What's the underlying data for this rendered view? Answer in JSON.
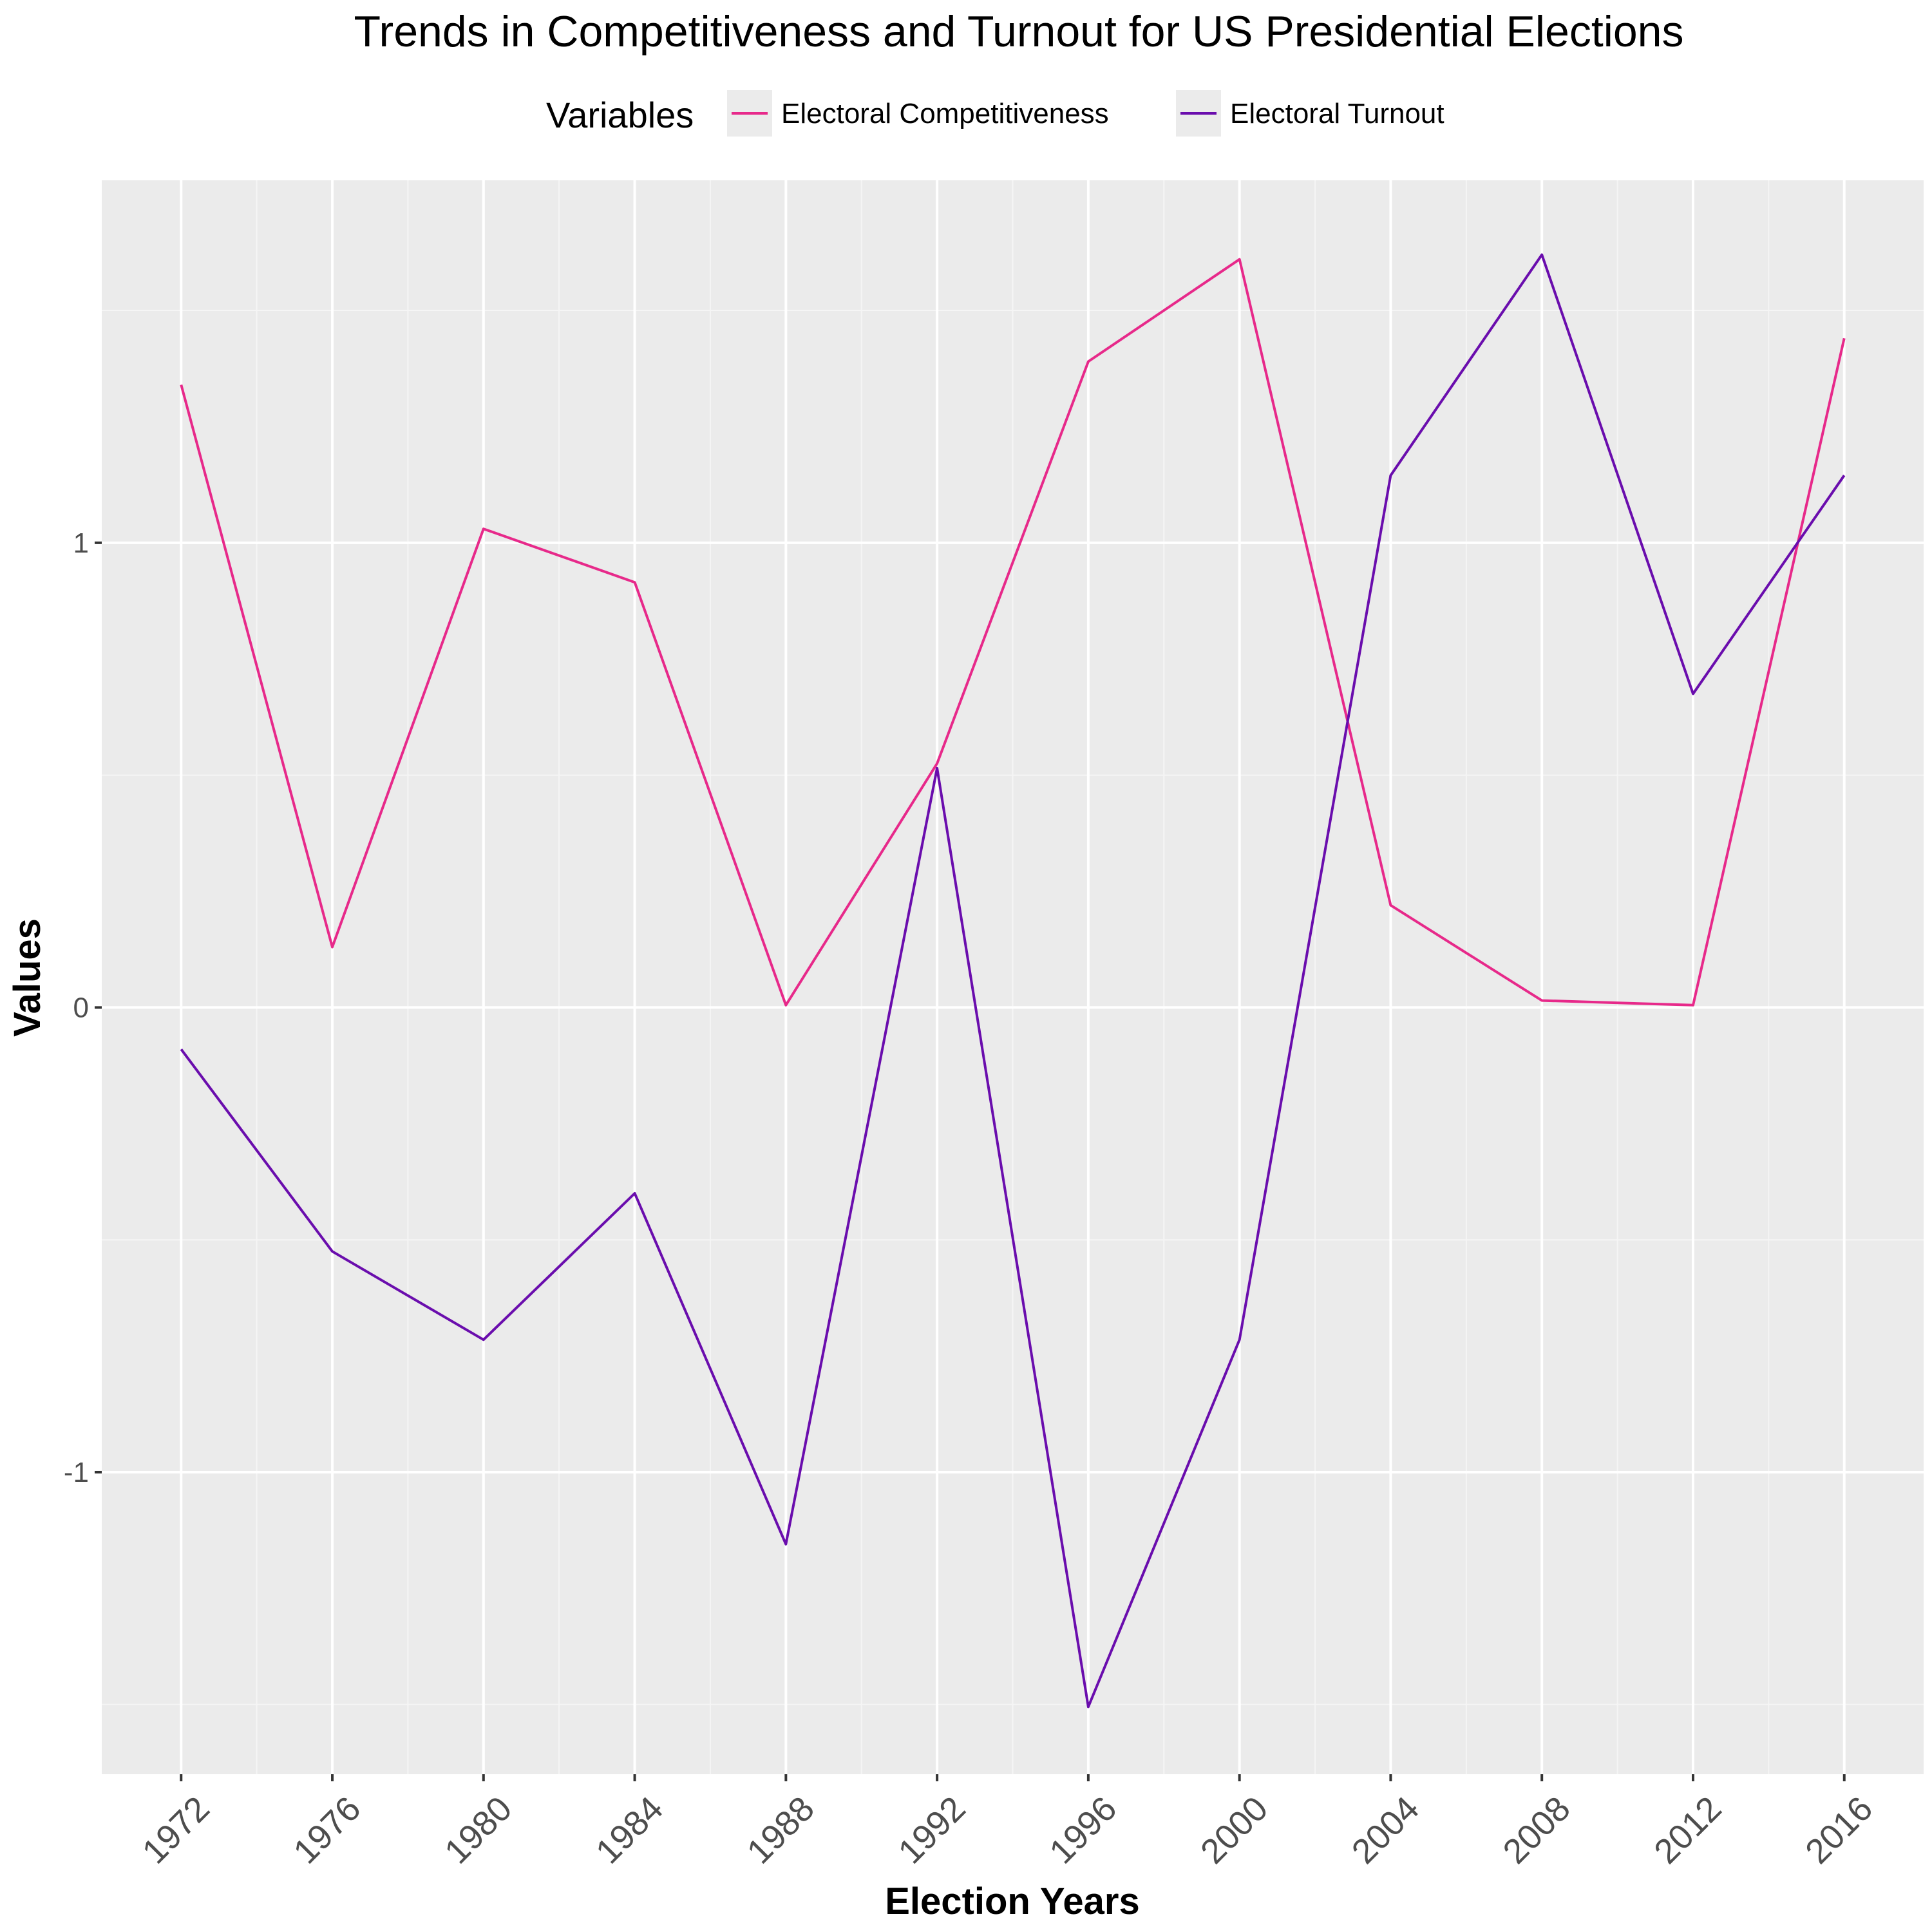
{
  "chart_data": {
    "type": "line",
    "title": "Trends in Competitiveness and Turnout for US Presidential Elections",
    "xlabel": "Election Years",
    "ylabel": "Values",
    "legend_title": "Variables",
    "legend_position": "top",
    "grid": true,
    "x": [
      1972,
      1976,
      1980,
      1984,
      1988,
      1992,
      1996,
      2000,
      2004,
      2008,
      2012,
      2016
    ],
    "x_tick_labels": [
      "1972",
      "1976",
      "1980",
      "1984",
      "1988",
      "1992",
      "1996",
      "2000",
      "2004",
      "2008",
      "2012",
      "2016"
    ],
    "y_ticks": [
      -1,
      0,
      1
    ],
    "y_tick_labels": [
      "-1",
      "0",
      "1"
    ],
    "xlim": [
      1969.9,
      2018.1
    ],
    "ylim": [
      -1.65,
      1.78
    ],
    "series": [
      {
        "name": "Electoral Competitiveness",
        "color": "#e7298a",
        "values": [
          1.34,
          0.13,
          1.03,
          0.915,
          0.005,
          0.525,
          1.39,
          1.61,
          0.22,
          0.015,
          0.005,
          1.44
        ]
      },
      {
        "name": "Electoral Turnout",
        "color": "#6a0dad",
        "values": [
          -0.09,
          -0.525,
          -0.715,
          -0.4,
          -1.155,
          0.515,
          -1.505,
          -0.715,
          1.145,
          1.62,
          0.675,
          1.145
        ]
      }
    ]
  }
}
